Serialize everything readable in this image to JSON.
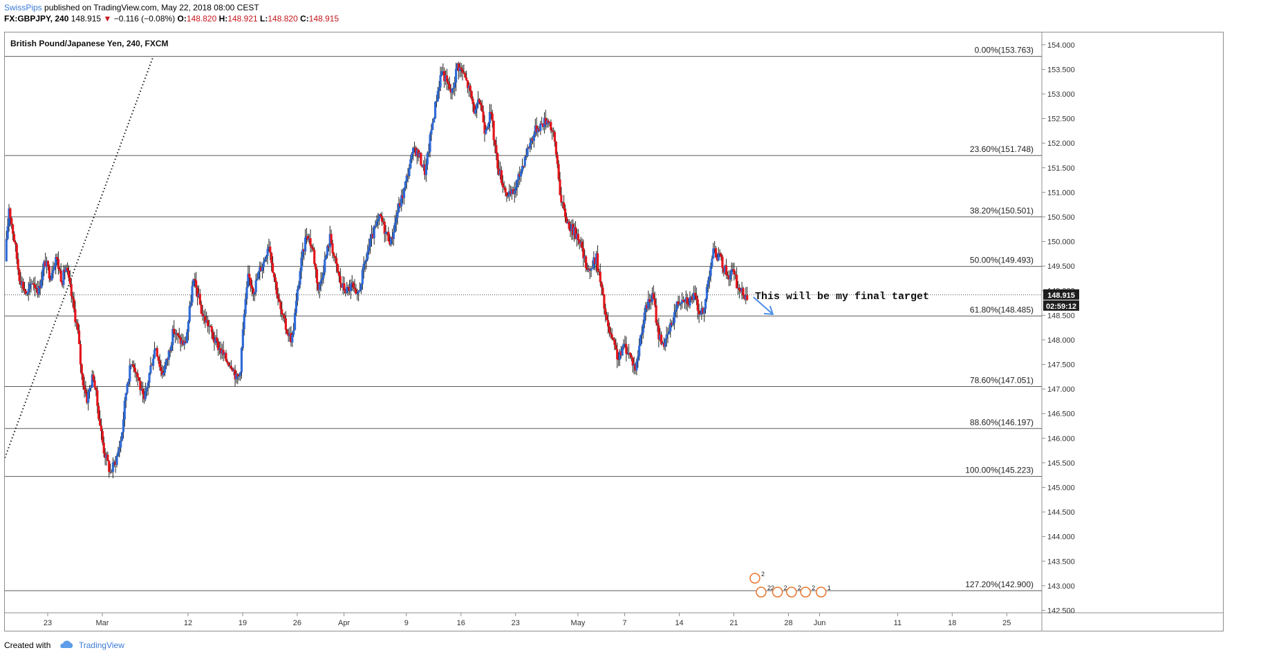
{
  "header": {
    "author": "SwissPips",
    "published": "published on TradingView.com, May 22, 2018 08:00 CEST",
    "symbol": "FX:GBPJPY, 240",
    "last": "148.915",
    "change": "−0.116 (−0.08%)",
    "o_label": "O:",
    "o": "148.820",
    "h_label": "H:",
    "h": "148.921",
    "l_label": "L:",
    "l": "148.820",
    "c_label": "C:",
    "c": "148.915"
  },
  "footer": {
    "created_with": "Created with",
    "brand": "TradingView"
  },
  "chart_data": {
    "type": "candlestick",
    "title": "British Pound/Japanese Yen, 240, FXCM",
    "ylim": [
      142.45,
      154.25
    ],
    "y_ticks": [
      "142.500",
      "143.000",
      "143.500",
      "144.000",
      "144.500",
      "145.000",
      "145.500",
      "146.000",
      "146.500",
      "147.000",
      "147.500",
      "148.000",
      "148.500",
      "149.000",
      "149.500",
      "150.000",
      "150.500",
      "151.000",
      "151.500",
      "152.000",
      "152.500",
      "153.000",
      "153.500",
      "154.000"
    ],
    "x_tick_labels": [
      "23",
      "Mar",
      "12",
      "19",
      "26",
      "Apr",
      "9",
      "16",
      "23",
      "May",
      "7",
      "14",
      "21",
      "28",
      "Jun",
      "11",
      "18",
      "25"
    ],
    "x_tick_days": [
      -7,
      0,
      11,
      18,
      25,
      31,
      39,
      46,
      53,
      61,
      67,
      74,
      81,
      88,
      92,
      102,
      109,
      116
    ],
    "x_range_days": [
      -12.5,
      120.5
    ],
    "fib_levels": [
      {
        "label": "0.00%(153.763)",
        "value": 153.763
      },
      {
        "label": "23.60%(151.748)",
        "value": 151.748
      },
      {
        "label": "38.20%(150.501)",
        "value": 150.501
      },
      {
        "label": "50.00%(149.493)",
        "value": 149.493
      },
      {
        "label": "61.80%(148.485)",
        "value": 148.485
      },
      {
        "label": "78.60%(147.051)",
        "value": 147.051
      },
      {
        "label": "88.60%(146.197)",
        "value": 146.197
      },
      {
        "label": "100.00%(145.223)",
        "value": 145.223
      },
      {
        "label": "127.20%(142.900)",
        "value": 142.9
      }
    ],
    "last_price": "148.915",
    "countdown": "02:59:12",
    "annotation": "This will be my final target",
    "colors": {
      "up": "#2f6bd8",
      "down": "#e4161c",
      "fib": "#5a5a5a",
      "annotation_arrow": "#4a8ee8",
      "price_tag": "#1e1e1e",
      "event_icon": "#e8742c"
    },
    "event_icons": [
      {
        "day": 83.7,
        "label": "2"
      },
      {
        "day": 83.7,
        "label": "22"
      },
      {
        "day": 85.0,
        "label": "2"
      },
      {
        "day": 86.0,
        "label": "2"
      },
      {
        "day": 87.0,
        "label": "2"
      },
      {
        "day": 88.2,
        "label": "1"
      }
    ],
    "trend_line": {
      "from": {
        "day": -12.5,
        "price": 145.6
      },
      "to": {
        "day": 6.5,
        "price": 153.75
      }
    },
    "target_arrow": {
      "from": {
        "day": 83.5,
        "price": 148.87
      },
      "to": {
        "day": 86.0,
        "price": 148.52
      }
    },
    "path_anchors": [
      [
        -12.3,
        149.6
      ],
      [
        -11.8,
        150.7
      ],
      [
        -11.0,
        149.9
      ],
      [
        -10.5,
        149.3
      ],
      [
        -9.5,
        148.9
      ],
      [
        -8.8,
        149.2
      ],
      [
        -8.0,
        149.0
      ],
      [
        -7.2,
        149.6
      ],
      [
        -6.5,
        149.3
      ],
      [
        -5.8,
        149.7
      ],
      [
        -5.0,
        149.2
      ],
      [
        -4.5,
        149.5
      ],
      [
        -3.8,
        148.9
      ],
      [
        -3.0,
        148.2
      ],
      [
        -2.5,
        147.3
      ],
      [
        -1.8,
        146.8
      ],
      [
        -1.0,
        147.3
      ],
      [
        -0.4,
        146.6
      ],
      [
        0.3,
        145.8
      ],
      [
        1.2,
        145.3
      ],
      [
        2.0,
        145.6
      ],
      [
        2.6,
        146.0
      ],
      [
        3.3,
        147.1
      ],
      [
        4.0,
        147.6
      ],
      [
        4.8,
        147.2
      ],
      [
        5.5,
        146.7
      ],
      [
        6.3,
        147.4
      ],
      [
        7.0,
        147.9
      ],
      [
        7.8,
        147.3
      ],
      [
        8.5,
        147.6
      ],
      [
        9.3,
        148.2
      ],
      [
        10.0,
        148.0
      ],
      [
        10.8,
        147.9
      ],
      [
        11.3,
        148.5
      ],
      [
        11.8,
        149.2
      ],
      [
        12.3,
        149.0
      ],
      [
        13.0,
        148.5
      ],
      [
        13.8,
        148.3
      ],
      [
        14.5,
        148.0
      ],
      [
        15.3,
        147.8
      ],
      [
        16.0,
        147.6
      ],
      [
        16.8,
        147.5
      ],
      [
        17.4,
        147.2
      ],
      [
        17.8,
        147.3
      ],
      [
        18.3,
        148.4
      ],
      [
        18.9,
        149.3
      ],
      [
        19.6,
        149.0
      ],
      [
        20.3,
        149.4
      ],
      [
        20.9,
        149.6
      ],
      [
        21.5,
        150.0
      ],
      [
        22.2,
        149.3
      ],
      [
        23.0,
        148.6
      ],
      [
        23.8,
        148.2
      ],
      [
        24.5,
        148.0
      ],
      [
        25.0,
        148.7
      ],
      [
        25.6,
        149.5
      ],
      [
        26.4,
        150.2
      ],
      [
        27.2,
        149.8
      ],
      [
        27.9,
        149.0
      ],
      [
        28.7,
        149.6
      ],
      [
        29.4,
        150.1
      ],
      [
        30.0,
        149.6
      ],
      [
        30.8,
        149.1
      ],
      [
        31.5,
        149.0
      ],
      [
        32.2,
        149.1
      ],
      [
        32.8,
        148.8
      ],
      [
        33.5,
        149.3
      ],
      [
        34.2,
        149.8
      ],
      [
        35.0,
        150.2
      ],
      [
        35.8,
        150.5
      ],
      [
        36.5,
        150.2
      ],
      [
        37.2,
        150.0
      ],
      [
        38.0,
        150.6
      ],
      [
        38.8,
        151.0
      ],
      [
        39.5,
        151.5
      ],
      [
        40.2,
        151.9
      ],
      [
        40.9,
        151.7
      ],
      [
        41.6,
        151.4
      ],
      [
        42.3,
        152.2
      ],
      [
        43.0,
        152.9
      ],
      [
        43.7,
        153.5
      ],
      [
        44.4,
        153.2
      ],
      [
        45.0,
        153.0
      ],
      [
        45.7,
        153.6
      ],
      [
        46.5,
        153.4
      ],
      [
        47.2,
        153.1
      ],
      [
        48.0,
        152.6
      ],
      [
        48.6,
        152.9
      ],
      [
        49.2,
        152.3
      ],
      [
        50.0,
        152.6
      ],
      [
        50.8,
        151.6
      ],
      [
        51.5,
        151.2
      ],
      [
        52.2,
        150.9
      ],
      [
        52.9,
        151.0
      ],
      [
        53.6,
        151.3
      ],
      [
        54.3,
        151.7
      ],
      [
        55.0,
        152.0
      ],
      [
        55.8,
        152.3
      ],
      [
        56.6,
        152.4
      ],
      [
        57.4,
        152.5
      ],
      [
        58.1,
        152.1
      ],
      [
        58.6,
        151.5
      ],
      [
        59.0,
        150.8
      ],
      [
        59.8,
        150.4
      ],
      [
        60.6,
        150.2
      ],
      [
        61.3,
        150.1
      ],
      [
        62.0,
        149.6
      ],
      [
        62.8,
        149.4
      ],
      [
        63.5,
        149.7
      ],
      [
        64.2,
        149.0
      ],
      [
        64.9,
        148.3
      ],
      [
        65.7,
        147.9
      ],
      [
        66.4,
        147.6
      ],
      [
        67.1,
        147.9
      ],
      [
        67.8,
        147.7
      ],
      [
        68.6,
        147.4
      ],
      [
        69.3,
        148.2
      ],
      [
        70.0,
        148.7
      ],
      [
        70.8,
        148.9
      ],
      [
        71.5,
        148.1
      ],
      [
        72.3,
        147.9
      ],
      [
        73.1,
        148.3
      ],
      [
        73.8,
        148.7
      ],
      [
        74.6,
        148.9
      ],
      [
        75.4,
        148.8
      ],
      [
        76.0,
        148.9
      ],
      [
        76.7,
        148.6
      ],
      [
        77.3,
        148.5
      ],
      [
        77.8,
        149.2
      ],
      [
        78.5,
        149.8
      ],
      [
        79.2,
        149.7
      ],
      [
        79.8,
        149.5
      ],
      [
        80.4,
        149.3
      ],
      [
        81.0,
        149.4
      ],
      [
        81.6,
        149.1
      ],
      [
        82.2,
        148.95
      ],
      [
        82.7,
        148.92
      ]
    ]
  }
}
